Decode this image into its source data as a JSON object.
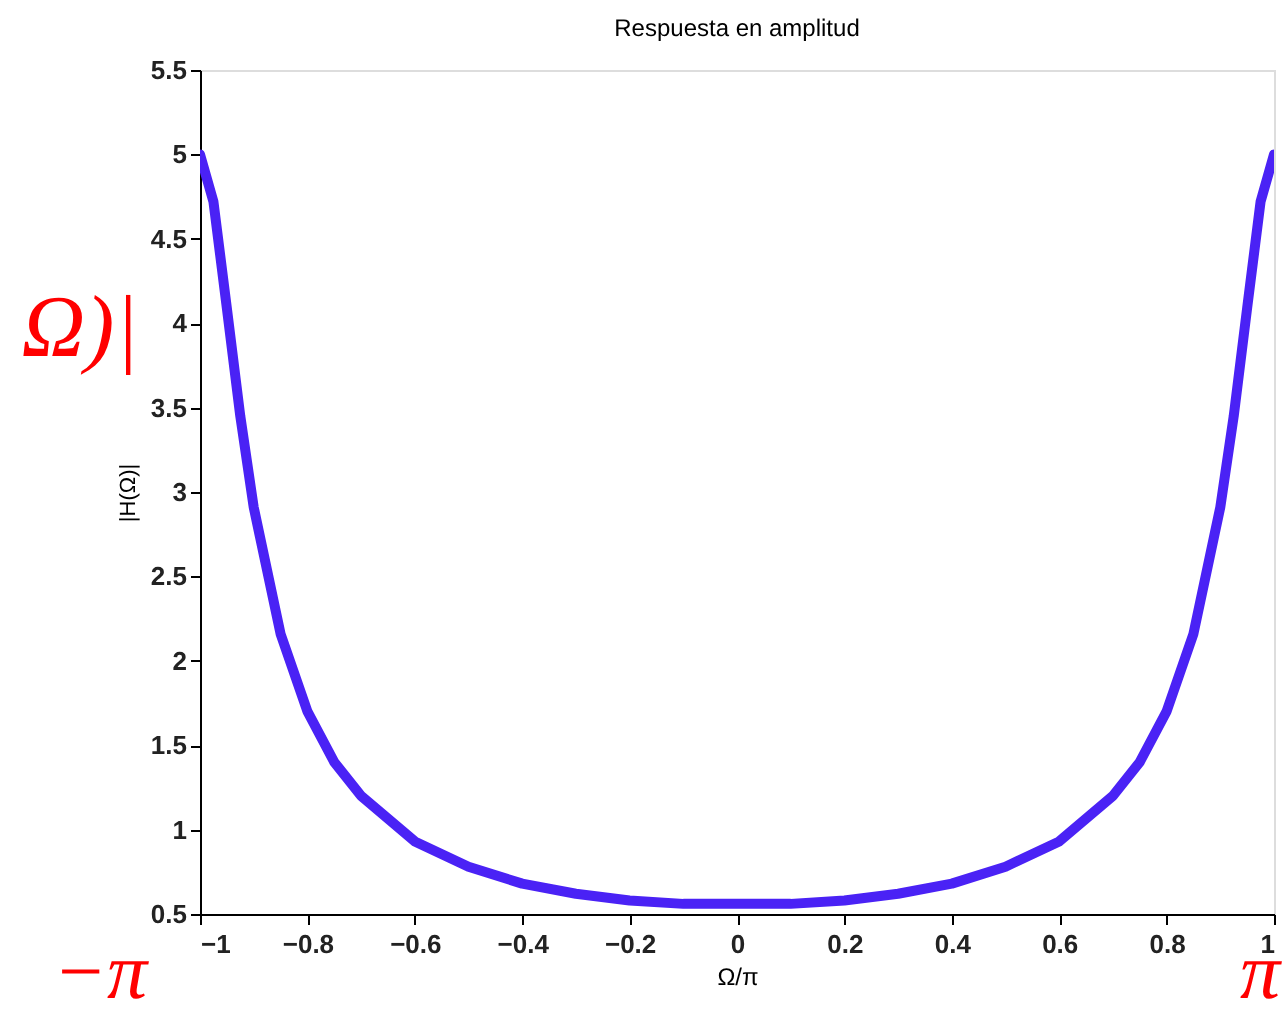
{
  "chart_data": {
    "type": "line",
    "title": "Respuesta en amplitud",
    "xlabel": "Ω/π",
    "ylabel": "|H(Ω)|",
    "x": [
      -1,
      -0.975,
      -0.95,
      -0.925,
      -0.9,
      -0.85,
      -0.8,
      -0.75,
      -0.7,
      -0.6,
      -0.5,
      -0.4,
      -0.3,
      -0.2,
      -0.1,
      0,
      0.1,
      0.2,
      0.3,
      0.4,
      0.5,
      0.6,
      0.7,
      0.75,
      0.8,
      0.85,
      0.9,
      0.925,
      0.95,
      0.975,
      1
    ],
    "series": [
      {
        "color": "#4a22f5",
        "values": [
          5,
          4.72,
          4.09,
          3.45,
          2.91,
          2.16,
          1.7,
          1.4,
          1.2,
          0.93,
          0.78,
          0.68,
          0.62,
          0.58,
          0.56,
          0.56,
          0.56,
          0.58,
          0.62,
          0.68,
          0.78,
          0.93,
          1.2,
          1.4,
          1.7,
          2.16,
          2.91,
          3.45,
          4.09,
          4.72,
          5
        ]
      }
    ],
    "xlim": [
      -1,
      1
    ],
    "xticks": [
      -1,
      -0.8,
      -0.6,
      -0.4,
      -0.2,
      0,
      0.2,
      0.4,
      0.6,
      0.8,
      1
    ],
    "ylim": [
      0.5,
      5.5
    ],
    "yticks": [
      0.5,
      1,
      1.5,
      2,
      2.5,
      3,
      3.5,
      4,
      4.5,
      5,
      5.5
    ],
    "grid": false,
    "marker": "none",
    "line_style": "solid",
    "annotations": [
      "Ω)|",
      "−π",
      "π"
    ]
  }
}
